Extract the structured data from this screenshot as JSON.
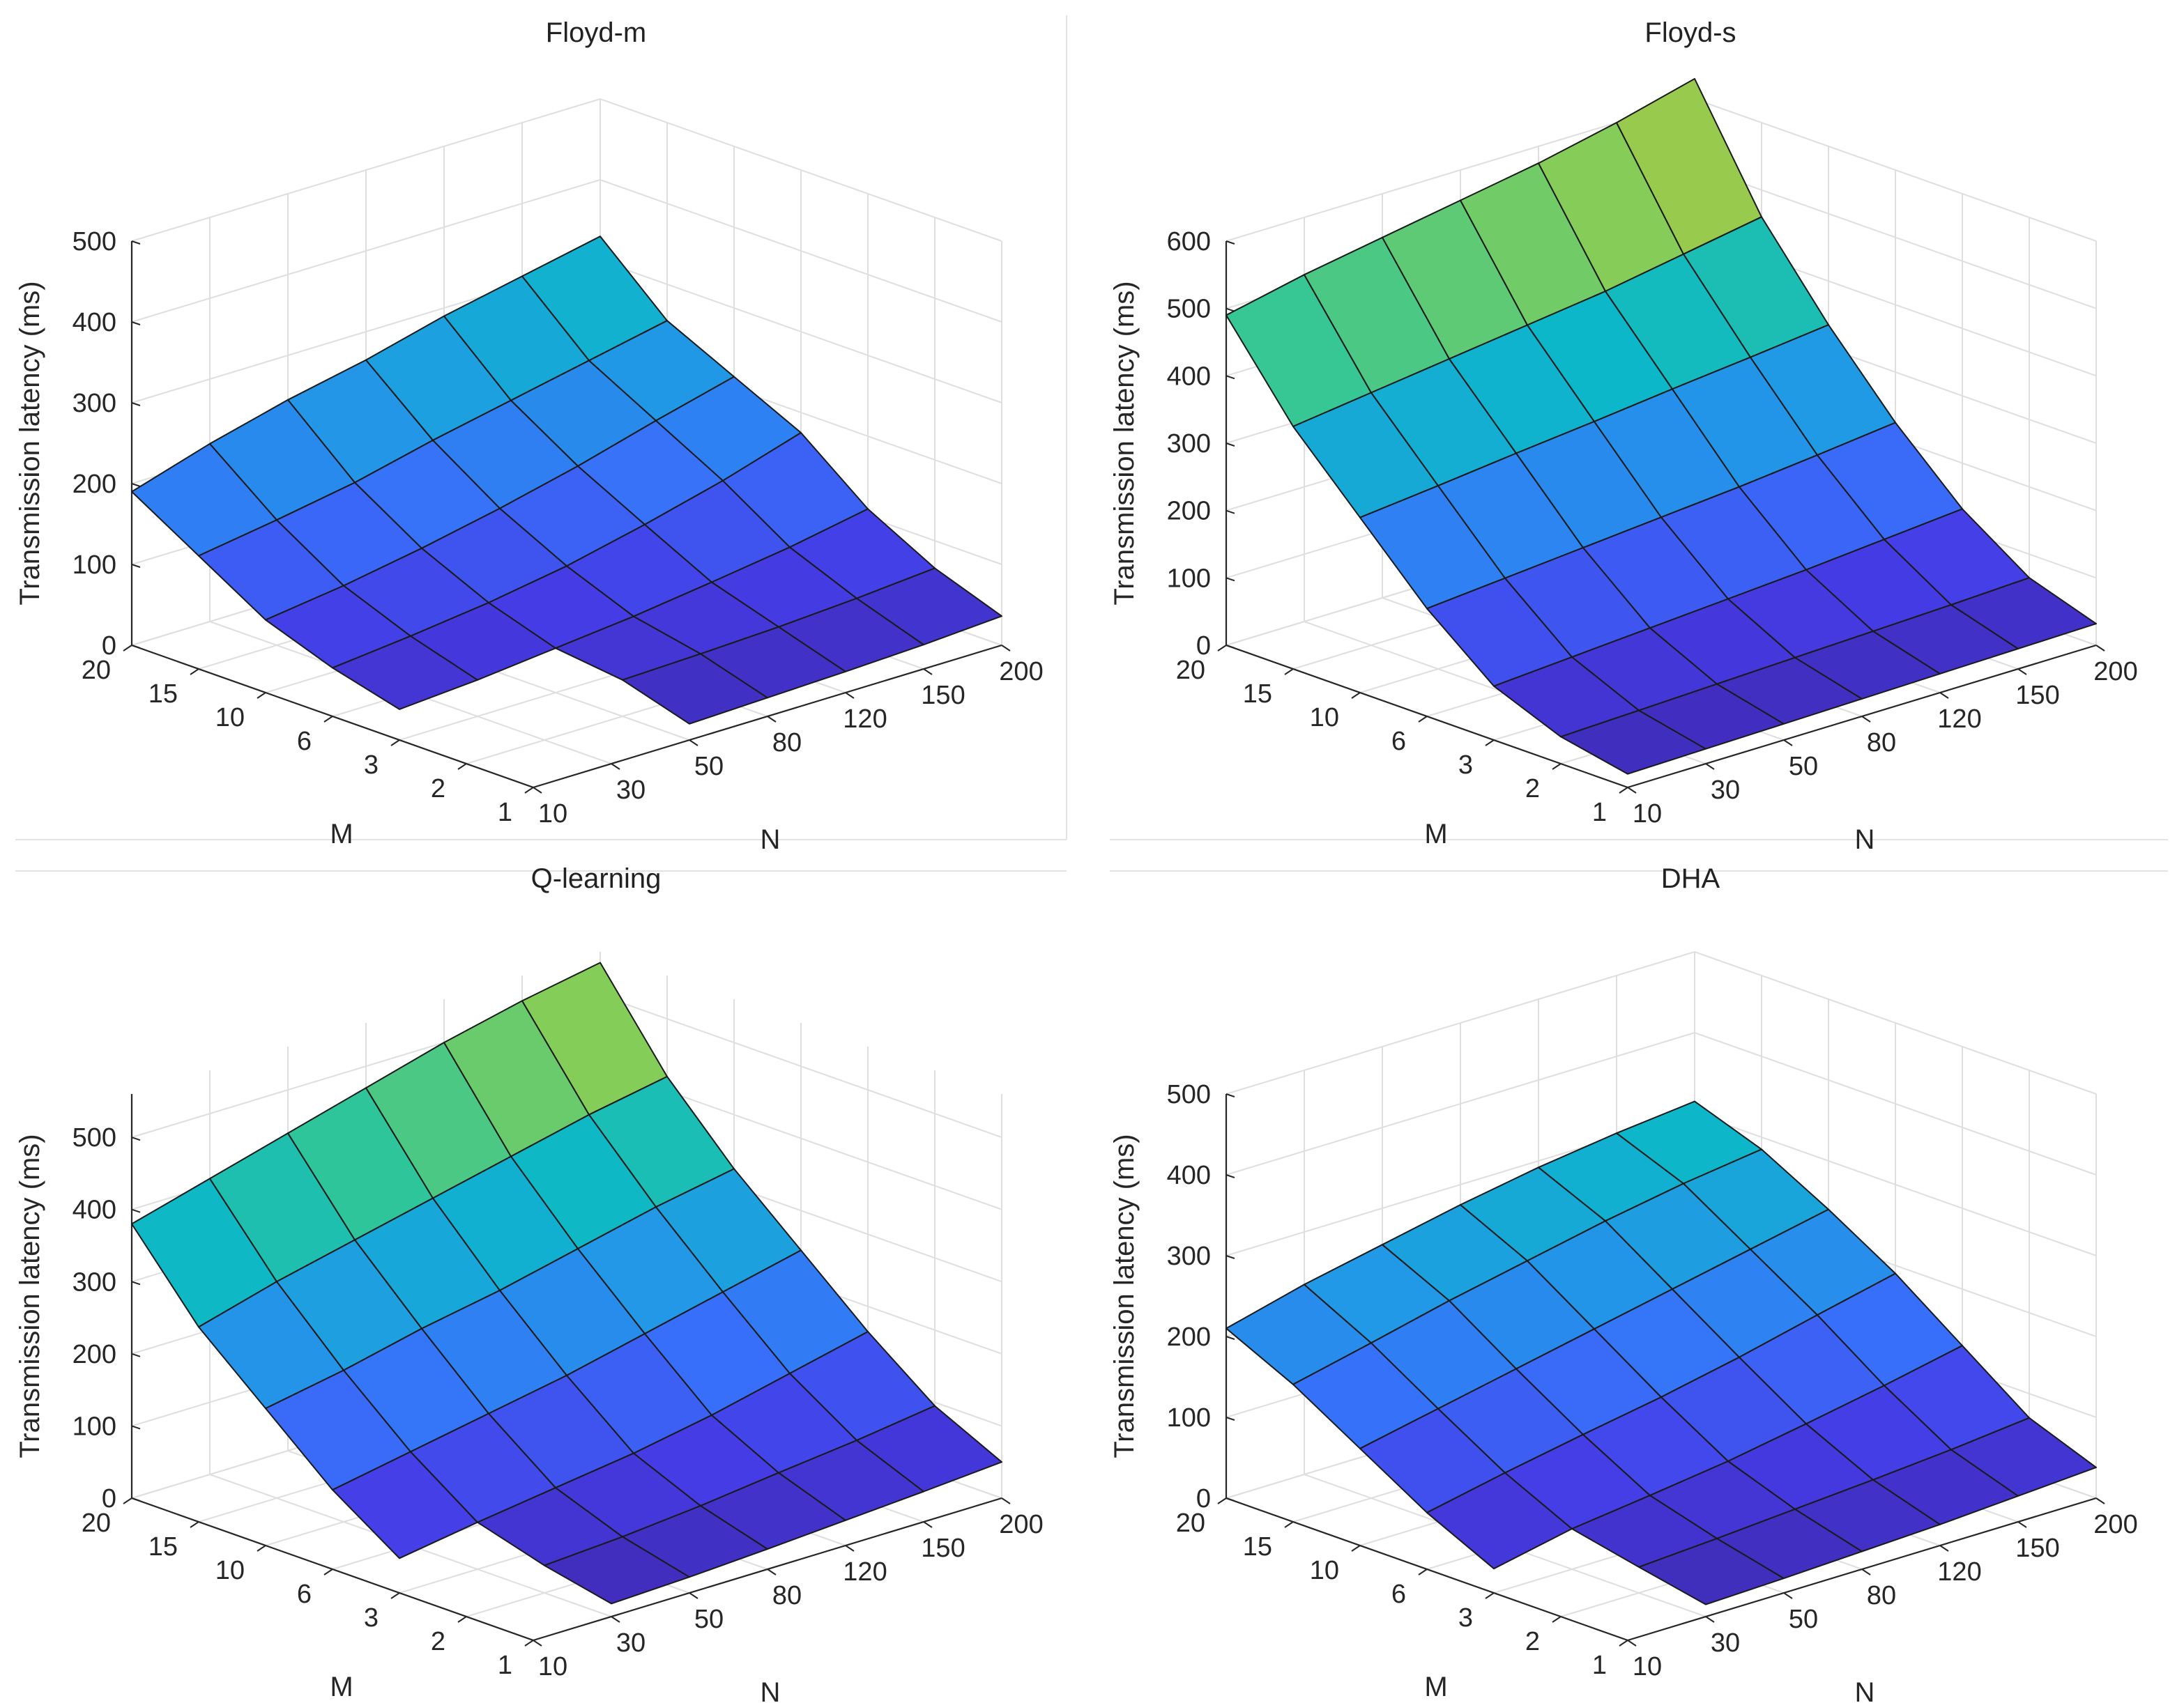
{
  "chart_data": [
    {
      "type": "surface3d",
      "title": "Floyd-m",
      "xlabel": "N",
      "ylabel": "M",
      "zlabel": "Transmission latency (ms)",
      "x_ticks": [
        "10",
        "30",
        "50",
        "80",
        "120",
        "150",
        "200"
      ],
      "y_ticks": [
        "1",
        "2",
        "3",
        "6",
        "10",
        "15",
        "20"
      ],
      "z_ticks": [
        "0",
        "100",
        "200",
        "300",
        "400",
        "500"
      ],
      "zlim": [
        0,
        500
      ],
      "z": [
        [
          null,
          null,
          20,
          23,
          26,
          30,
          36
        ],
        [
          null,
          null,
          45,
          48,
          52,
          58,
          66
        ],
        [
          38,
          45,
          55,
          65,
          78,
          92,
          110
        ],
        [
          60,
          70,
          82,
          98,
          120,
          145,
          175
        ],
        [
          90,
          103,
          120,
          140,
          163,
          190,
          215
        ],
        [
          140,
          155,
          172,
          195,
          215,
          235,
          255
        ],
        [
          190,
          220,
          245,
          265,
          290,
          310,
          330
        ]
      ]
    },
    {
      "type": "surface3d",
      "title": "Floyd-s",
      "xlabel": "N",
      "ylabel": "M",
      "zlabel": "Transmission latency (ms)",
      "x_ticks": [
        "10",
        "30",
        "50",
        "80",
        "120",
        "150",
        "200"
      ],
      "y_ticks": [
        "1",
        "2",
        "3",
        "6",
        "10",
        "15",
        "20"
      ],
      "z_ticks": [
        "0",
        "100",
        "200",
        "300",
        "400",
        "500",
        "600"
      ],
      "zlim": [
        0,
        600
      ],
      "z": [
        [
          20,
          22,
          24,
          26,
          28,
          30,
          32
        ],
        [
          40,
          44,
          48,
          52,
          56,
          60,
          65
        ],
        [
          80,
          88,
          96,
          104,
          112,
          122,
          132
        ],
        [
          160,
          170,
          180,
          190,
          200,
          212,
          225
        ],
        [
          260,
          272,
          285,
          297,
          310,
          322,
          335
        ],
        [
          360,
          375,
          390,
          405,
          420,
          440,
          460
        ],
        [
          490,
          515,
          535,
          555,
          575,
          600,
          630
        ]
      ]
    },
    {
      "type": "surface3d",
      "title": "Q-learning",
      "xlabel": "N",
      "ylabel": "M",
      "zlabel": "Transmission latency (ms)",
      "x_ticks": [
        "10",
        "30",
        "50",
        "80",
        "120",
        "150",
        "200"
      ],
      "y_ticks": [
        "1",
        "2",
        "3",
        "6",
        "10",
        "15",
        "20"
      ],
      "z_ticks": [
        "0",
        "100",
        "200",
        "300",
        "400",
        "500"
      ],
      "zlim": [
        0,
        560
      ],
      "z": [
        [
          null,
          18,
          22,
          28,
          35,
          42,
          50
        ],
        [
          null,
          38,
          45,
          55,
          68,
          80,
          95
        ],
        [
          48,
          65,
          80,
          95,
          115,
          140,
          165
        ],
        [
          110,
          130,
          150,
          170,
          195,
          220,
          245
        ],
        [
          190,
          210,
          235,
          255,
          280,
          305,
          325
        ],
        [
          270,
          300,
          325,
          350,
          375,
          400,
          420
        ],
        [
          380,
          410,
          440,
          470,
          500,
          525,
          545
        ]
      ]
    },
    {
      "type": "surface3d",
      "title": "DHA",
      "xlabel": "N",
      "ylabel": "M",
      "zlabel": "Transmission latency (ms)",
      "x_ticks": [
        "10",
        "30",
        "50",
        "80",
        "120",
        "150",
        "200"
      ],
      "y_ticks": [
        "1",
        "2",
        "3",
        "6",
        "10",
        "15",
        "20"
      ],
      "z_ticks": [
        "0",
        "100",
        "200",
        "300",
        "400",
        "500"
      ],
      "zlim": [
        0,
        500
      ],
      "z": [
        [
          null,
          15,
          18,
          22,
          26,
          32,
          38
        ],
        [
          null,
          32,
          38,
          45,
          52,
          60,
          70
        ],
        [
          30,
          50,
          62,
          75,
          92,
          110,
          130
        ],
        [
          70,
          90,
          108,
          125,
          145,
          168,
          190
        ],
        [
          120,
          140,
          160,
          180,
          200,
          220,
          240
        ],
        [
          170,
          192,
          215,
          235,
          255,
          272,
          285
        ],
        [
          210,
          235,
          255,
          275,
          292,
          305,
          315
        ]
      ]
    }
  ]
}
